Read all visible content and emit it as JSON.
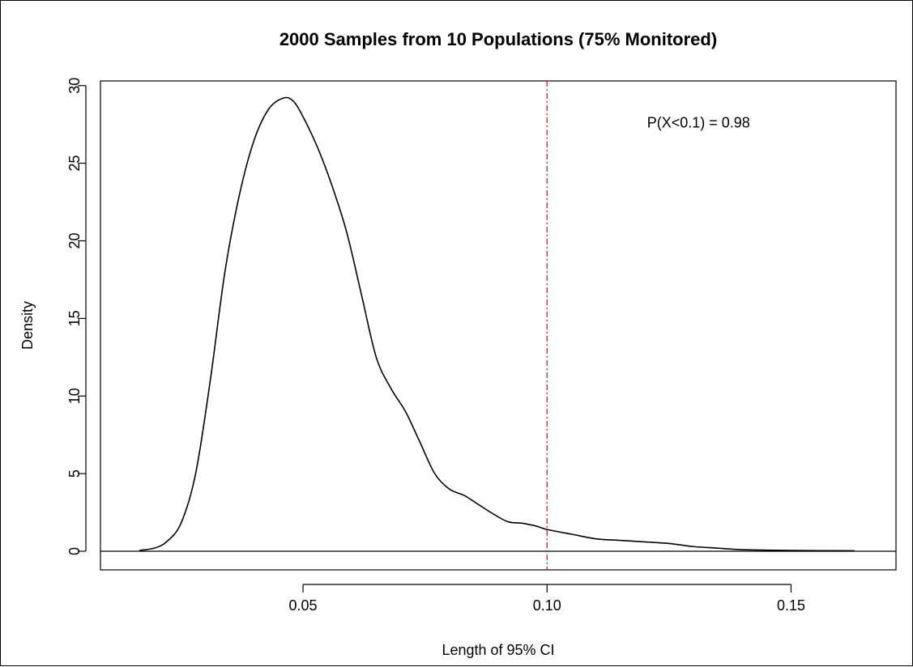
{
  "chart_data": {
    "type": "line",
    "title": "2000 Samples from  10  Populations (75% Monitored)",
    "xlabel": "Length of 95% CI",
    "ylabel": "Density",
    "xlim": [
      0.0085,
      0.1715
    ],
    "ylim": [
      -1.2,
      30.3
    ],
    "xticks": [
      {
        "value": 0.05,
        "label": "0.05"
      },
      {
        "value": 0.1,
        "label": "0.10"
      },
      {
        "value": 0.15,
        "label": "0.15"
      }
    ],
    "yticks": [
      {
        "value": 0,
        "label": "0"
      },
      {
        "value": 5,
        "label": "5"
      },
      {
        "value": 10,
        "label": "10"
      },
      {
        "value": 15,
        "label": "15"
      },
      {
        "value": 20,
        "label": "20"
      },
      {
        "value": 25,
        "label": "25"
      },
      {
        "value": 30,
        "label": "30"
      }
    ],
    "grid": false,
    "series": [
      {
        "color": "#000000",
        "x": [
          0.0165,
          0.0195,
          0.022,
          0.025,
          0.028,
          0.031,
          0.034,
          0.037,
          0.04,
          0.043,
          0.046,
          0.048,
          0.05,
          0.053,
          0.056,
          0.059,
          0.062,
          0.065,
          0.068,
          0.071,
          0.074,
          0.077,
          0.08,
          0.083,
          0.086,
          0.089,
          0.092,
          0.095,
          0.098,
          0.1,
          0.105,
          0.11,
          0.115,
          0.12,
          0.125,
          0.13,
          0.135,
          0.14,
          0.15,
          0.163
        ],
        "y": [
          0.05,
          0.2,
          0.6,
          1.8,
          5.0,
          11.0,
          18.0,
          23.0,
          26.5,
          28.5,
          29.2,
          29.0,
          28.0,
          26.0,
          23.5,
          20.5,
          16.5,
          12.5,
          10.5,
          9.0,
          7.0,
          5.0,
          4.0,
          3.6,
          3.0,
          2.4,
          1.9,
          1.8,
          1.6,
          1.4,
          1.1,
          0.8,
          0.7,
          0.6,
          0.5,
          0.3,
          0.2,
          0.1,
          0.05,
          0.03
        ]
      }
    ],
    "hlines": [
      {
        "y": 0,
        "color": "#000000",
        "style": "solid"
      }
    ],
    "vlines": [
      {
        "x": 0.1,
        "color": "#e8001a",
        "style": "dashed"
      }
    ],
    "annotation": {
      "text": "P(X<0.1) = 0.98",
      "x": 0.1205,
      "y": 27.3
    }
  }
}
